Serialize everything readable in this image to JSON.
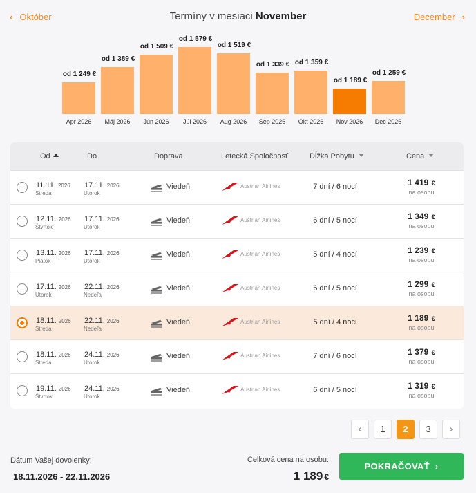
{
  "nav": {
    "prev_label": "Október",
    "next_label": "December",
    "title_prefix": "Termíny v mesiaci",
    "title_month": "November"
  },
  "chart_data": {
    "type": "bar",
    "categories": [
      "Apr 2026",
      "Máj 2026",
      "Jún 2026",
      "Júl 2026",
      "Aug 2026",
      "Sep 2026",
      "Okt 2026",
      "Nov 2026",
      "Dec 2026"
    ],
    "values": [
      1249,
      1389,
      1509,
      1579,
      1519,
      1339,
      1359,
      1189,
      1259
    ],
    "value_labels": [
      "od 1 249 €",
      "od 1 389 €",
      "od 1 509 €",
      "od 1 579 €",
      "od 1 519 €",
      "od 1 339 €",
      "od 1 359 €",
      "od 1 189 €",
      "od 1 259 €"
    ],
    "selected_index": 7,
    "colors": {
      "bar": "#ffb06b",
      "selected": "#f57c00"
    }
  },
  "table": {
    "headers": {
      "from": "Od",
      "to": "Do",
      "transport": "Doprava",
      "airline": "Letecká Spoločnosť",
      "stay": "Dĺžka Pobytu",
      "price": "Cena"
    },
    "rows": [
      {
        "from_date": "11.11.",
        "from_year": "2026",
        "from_day": "Streda",
        "to_date": "17.11.",
        "to_year": "2026",
        "to_day": "Utorok",
        "city": "Viedeň",
        "airline": "Austrian Airlines",
        "stay": "7 dní / 6 nocí",
        "price": "1 419",
        "currency": "€",
        "per": "na osobu",
        "selected": false
      },
      {
        "from_date": "12.11.",
        "from_year": "2026",
        "from_day": "Štvrtok",
        "to_date": "17.11.",
        "to_year": "2026",
        "to_day": "Utorok",
        "city": "Viedeň",
        "airline": "Austrian Airlines",
        "stay": "6 dní / 5 nocí",
        "price": "1 349",
        "currency": "€",
        "per": "na osobu",
        "selected": false
      },
      {
        "from_date": "13.11.",
        "from_year": "2026",
        "from_day": "Piatok",
        "to_date": "17.11.",
        "to_year": "2026",
        "to_day": "Utorok",
        "city": "Viedeň",
        "airline": "Austrian Airlines",
        "stay": "5 dní / 4 nocí",
        "price": "1 239",
        "currency": "€",
        "per": "na osobu",
        "selected": false
      },
      {
        "from_date": "17.11.",
        "from_year": "2026",
        "from_day": "Utorok",
        "to_date": "22.11.",
        "to_year": "2026",
        "to_day": "Nedeľa",
        "city": "Viedeň",
        "airline": "Austrian Airlines",
        "stay": "6 dní / 5 nocí",
        "price": "1 299",
        "currency": "€",
        "per": "na osobu",
        "selected": false
      },
      {
        "from_date": "18.11.",
        "from_year": "2026",
        "from_day": "Streda",
        "to_date": "22.11.",
        "to_year": "2026",
        "to_day": "Nedeľa",
        "city": "Viedeň",
        "airline": "Austrian Airlines",
        "stay": "5 dní / 4 noci",
        "price": "1 189",
        "currency": "€",
        "per": "na osobu",
        "selected": true
      },
      {
        "from_date": "18.11.",
        "from_year": "2026",
        "from_day": "Streda",
        "to_date": "24.11.",
        "to_year": "2026",
        "to_day": "Utorok",
        "city": "Viedeň",
        "airline": "Austrian Airlines",
        "stay": "7 dní / 6 nocí",
        "price": "1 379",
        "currency": "€",
        "per": "na osobu",
        "selected": false
      },
      {
        "from_date": "19.11.",
        "from_year": "2026",
        "from_day": "Štvrtok",
        "to_date": "24.11.",
        "to_year": "2026",
        "to_day": "Utorok",
        "city": "Viedeň",
        "airline": "Austrian Airlines",
        "stay": "6 dní / 5 nocí",
        "price": "1 319",
        "currency": "€",
        "per": "na osobu",
        "selected": false
      }
    ]
  },
  "pagination": {
    "prev_icon": "chevron-left-icon",
    "pages": [
      "1",
      "2",
      "3"
    ],
    "active_page": "2",
    "next_icon": "chevron-right-icon"
  },
  "footer": {
    "dates_label": "Dátum Vašej dovolenky:",
    "dates_value": "18.11.2026 - 22.11.2026",
    "total_label": "Celková cena na osobu:",
    "total_value": "1 189",
    "total_currency": "€",
    "cta_label": "POKRAČOVAŤ"
  },
  "colors": {
    "accent": "#f08a24",
    "selected_row": "#fbeadc",
    "cta": "#2fb75a",
    "airline_logo": "#d7141a"
  }
}
